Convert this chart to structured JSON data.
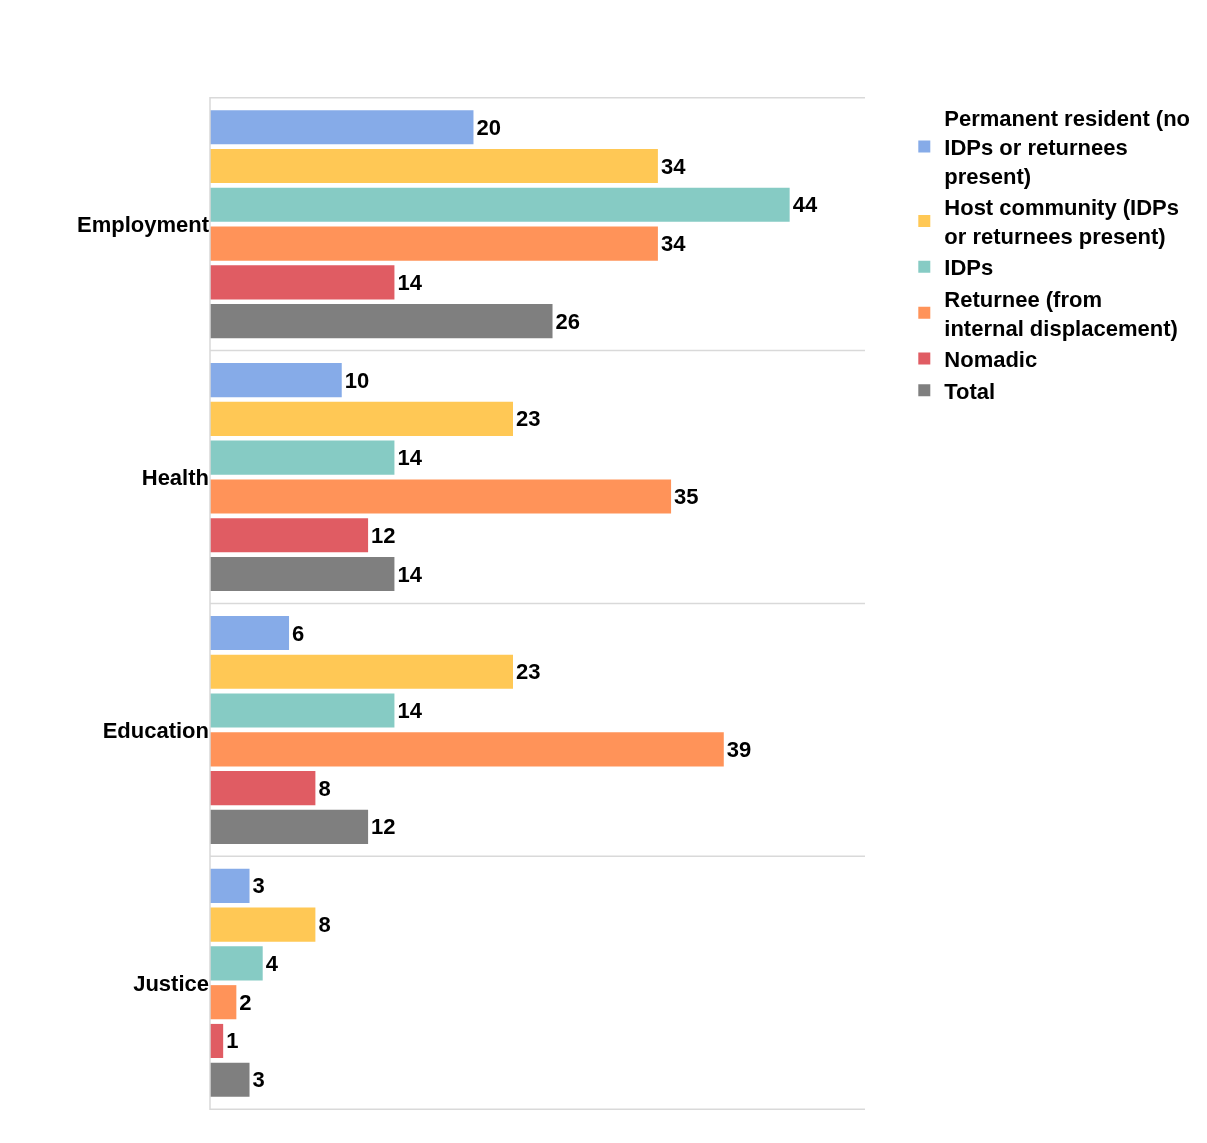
{
  "chart_data": {
    "type": "bar",
    "orientation": "horizontal",
    "categories": [
      "Employment",
      "Health",
      "Education",
      "Justice"
    ],
    "series": [
      {
        "name": "Permanent resident (no IDPs or returnees present)",
        "color": "#86abe8",
        "values": [
          20,
          10,
          6,
          3
        ]
      },
      {
        "name": "Host community (IDPs or returnees present)",
        "color": "#ffc855",
        "values": [
          34,
          23,
          23,
          8
        ]
      },
      {
        "name": "IDPs",
        "color": "#86cbc4",
        "values": [
          44,
          14,
          14,
          4
        ]
      },
      {
        "name": "Returnee (from internal displacement)",
        "color": "#ff9359",
        "values": [
          34,
          35,
          39,
          2
        ]
      },
      {
        "name": "Nomadic",
        "color": "#e05c63",
        "values": [
          14,
          12,
          8,
          1
        ]
      },
      {
        "name": "Total",
        "color": "#7f7f7f",
        "values": [
          26,
          14,
          12,
          3
        ]
      }
    ],
    "data_labels": true,
    "grid": "y",
    "legend": "right",
    "tick_labels": "y"
  }
}
